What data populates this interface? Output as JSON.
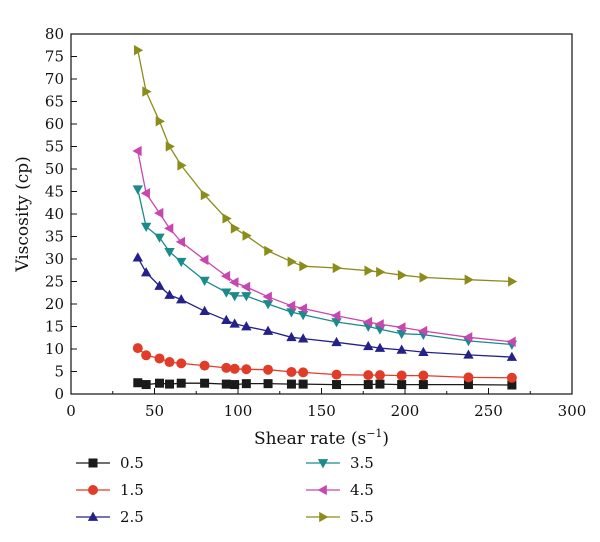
{
  "chart_data": {
    "type": "line",
    "title": "",
    "xlabel": "Shear rate (s",
    "xlabel_sup": "−1",
    "xlabel_suffix": ")",
    "ylabel": "Viscosity (cp)",
    "xlim": [
      0,
      300
    ],
    "ylim": [
      0,
      80
    ],
    "xticks": [
      0,
      50,
      100,
      150,
      200,
      250,
      300
    ],
    "yticks": [
      0,
      5,
      10,
      15,
      20,
      25,
      30,
      35,
      40,
      45,
      50,
      55,
      60,
      65,
      70,
      75,
      80
    ],
    "grid": false,
    "legend": "bottom",
    "series": [
      {
        "name": "0.5",
        "color": "#1a1a1a",
        "marker": "square",
        "points": [
          [
            40,
            2.5
          ],
          [
            45,
            2.1
          ],
          [
            53,
            2.4
          ],
          [
            59,
            2.2
          ],
          [
            66,
            2.4
          ],
          [
            80,
            2.4
          ],
          [
            93,
            2.2
          ],
          [
            98,
            2.1
          ],
          [
            105,
            2.3
          ],
          [
            118,
            2.3
          ],
          [
            132,
            2.2
          ],
          [
            139,
            2.2
          ],
          [
            159,
            2.1
          ],
          [
            178,
            2.1
          ],
          [
            185,
            2.2
          ],
          [
            198,
            2.1
          ],
          [
            211,
            2.1
          ],
          [
            238,
            2.1
          ],
          [
            264,
            2.0
          ]
        ]
      },
      {
        "name": "1.5",
        "color": "#e03c28",
        "marker": "circle",
        "points": [
          [
            40,
            10.2
          ],
          [
            45,
            8.6
          ],
          [
            53,
            7.9
          ],
          [
            59,
            7.1
          ],
          [
            66,
            6.8
          ],
          [
            80,
            6.3
          ],
          [
            93,
            5.8
          ],
          [
            98,
            5.6
          ],
          [
            105,
            5.5
          ],
          [
            118,
            5.4
          ],
          [
            132,
            4.9
          ],
          [
            139,
            4.8
          ],
          [
            159,
            4.3
          ],
          [
            178,
            4.2
          ],
          [
            185,
            4.2
          ],
          [
            198,
            4.1
          ],
          [
            211,
            4.1
          ],
          [
            238,
            3.7
          ],
          [
            264,
            3.6
          ]
        ]
      },
      {
        "name": "2.5",
        "color": "#24228a",
        "marker": "triangle-up",
        "points": [
          [
            40,
            30.3
          ],
          [
            45,
            27.0
          ],
          [
            53,
            24.0
          ],
          [
            59,
            22.0
          ],
          [
            66,
            21.0
          ],
          [
            80,
            18.4
          ],
          [
            93,
            16.4
          ],
          [
            98,
            15.6
          ],
          [
            105,
            15.0
          ],
          [
            118,
            14.0
          ],
          [
            132,
            12.6
          ],
          [
            139,
            12.3
          ],
          [
            159,
            11.5
          ],
          [
            178,
            10.6
          ],
          [
            185,
            10.2
          ],
          [
            198,
            9.8
          ],
          [
            211,
            9.3
          ],
          [
            238,
            8.7
          ],
          [
            264,
            8.2
          ]
        ]
      },
      {
        "name": "3.5",
        "color": "#1a8a8a",
        "marker": "triangle-down",
        "points": [
          [
            40,
            45.5
          ],
          [
            45,
            37.2
          ],
          [
            53,
            34.8
          ],
          [
            59,
            31.6
          ],
          [
            66,
            29.4
          ],
          [
            80,
            25.2
          ],
          [
            93,
            22.6
          ],
          [
            98,
            21.8
          ],
          [
            105,
            21.8
          ],
          [
            118,
            20.0
          ],
          [
            132,
            18.2
          ],
          [
            139,
            17.6
          ],
          [
            159,
            16.0
          ],
          [
            178,
            15.0
          ],
          [
            185,
            14.4
          ],
          [
            198,
            13.4
          ],
          [
            211,
            13.2
          ],
          [
            238,
            11.8
          ],
          [
            264,
            11.0
          ]
        ]
      },
      {
        "name": "4.5",
        "color": "#c846b0",
        "marker": "triangle-left",
        "points": [
          [
            40,
            54.0
          ],
          [
            45,
            44.6
          ],
          [
            53,
            40.2
          ],
          [
            59,
            36.8
          ],
          [
            66,
            33.8
          ],
          [
            80,
            29.8
          ],
          [
            93,
            26.2
          ],
          [
            98,
            24.8
          ],
          [
            105,
            23.8
          ],
          [
            118,
            21.6
          ],
          [
            132,
            19.6
          ],
          [
            139,
            19.0
          ],
          [
            159,
            17.4
          ],
          [
            178,
            16.0
          ],
          [
            185,
            15.5
          ],
          [
            198,
            14.8
          ],
          [
            211,
            14.0
          ],
          [
            238,
            12.6
          ],
          [
            264,
            11.6
          ]
        ]
      },
      {
        "name": "5.5",
        "color": "#8c8c1a",
        "marker": "triangle-right",
        "points": [
          [
            40,
            76.4
          ],
          [
            45,
            67.2
          ],
          [
            53,
            60.6
          ],
          [
            59,
            55.0
          ],
          [
            66,
            50.8
          ],
          [
            80,
            44.2
          ],
          [
            93,
            39.0
          ],
          [
            98,
            36.8
          ],
          [
            105,
            35.2
          ],
          [
            118,
            31.8
          ],
          [
            132,
            29.4
          ],
          [
            139,
            28.4
          ],
          [
            159,
            28.0
          ],
          [
            178,
            27.4
          ],
          [
            185,
            27.1
          ],
          [
            198,
            26.4
          ],
          [
            211,
            25.9
          ],
          [
            238,
            25.4
          ],
          [
            264,
            25.0
          ]
        ]
      }
    ]
  }
}
